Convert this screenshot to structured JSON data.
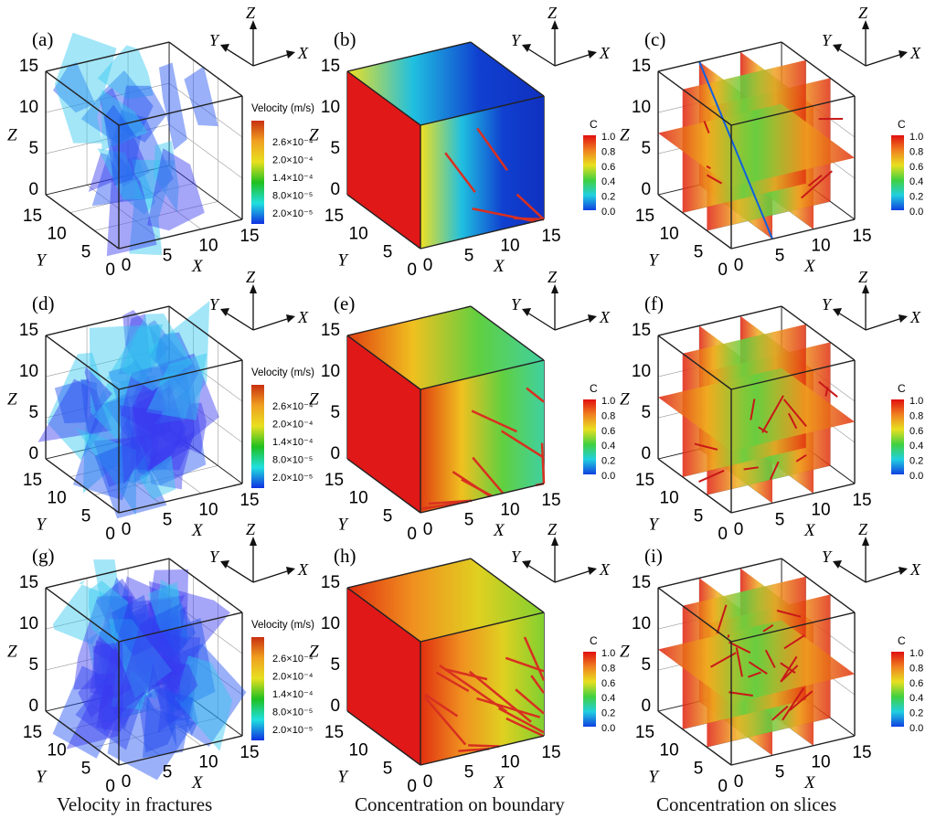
{
  "axes": {
    "x": "X",
    "y": "Y",
    "z": "Z",
    "ticks": [
      "0",
      "5",
      "10",
      "15"
    ]
  },
  "colorbars": {
    "velocity": {
      "title": "Velocity (m/s)",
      "labels": [
        "2.6×10⁻⁴",
        "2.0×10⁻⁴",
        "1.4×10⁻⁴",
        "8.0×10⁻⁵",
        "2.0×10⁻⁵"
      ],
      "colors": [
        "#c83010",
        "#f0a020",
        "#e8e020",
        "#20c020",
        "#20e0e0",
        "#1030e0"
      ]
    },
    "concentration": {
      "title": "C",
      "labels": [
        "1.0",
        "0.8",
        "0.6",
        "0.4",
        "0.2",
        "0.0"
      ],
      "colors": [
        "#e01010",
        "#f08020",
        "#e8e020",
        "#40d040",
        "#20d0e0",
        "#1040e0"
      ]
    }
  },
  "panels": [
    {
      "label": "(a)",
      "kind": "velocity",
      "density": 1
    },
    {
      "label": "(b)",
      "kind": "boundary",
      "density": 1
    },
    {
      "label": "(c)",
      "kind": "slices",
      "density": 1
    },
    {
      "label": "(d)",
      "kind": "velocity",
      "density": 2
    },
    {
      "label": "(e)",
      "kind": "boundary",
      "density": 2
    },
    {
      "label": "(f)",
      "kind": "slices",
      "density": 2
    },
    {
      "label": "(g)",
      "kind": "velocity",
      "density": 3
    },
    {
      "label": "(h)",
      "kind": "boundary",
      "density": 3
    },
    {
      "label": "(i)",
      "kind": "slices",
      "density": 3
    }
  ],
  "captions": [
    "Velocity in fractures",
    "Concentration on boundary",
    "Concentration on slices"
  ]
}
